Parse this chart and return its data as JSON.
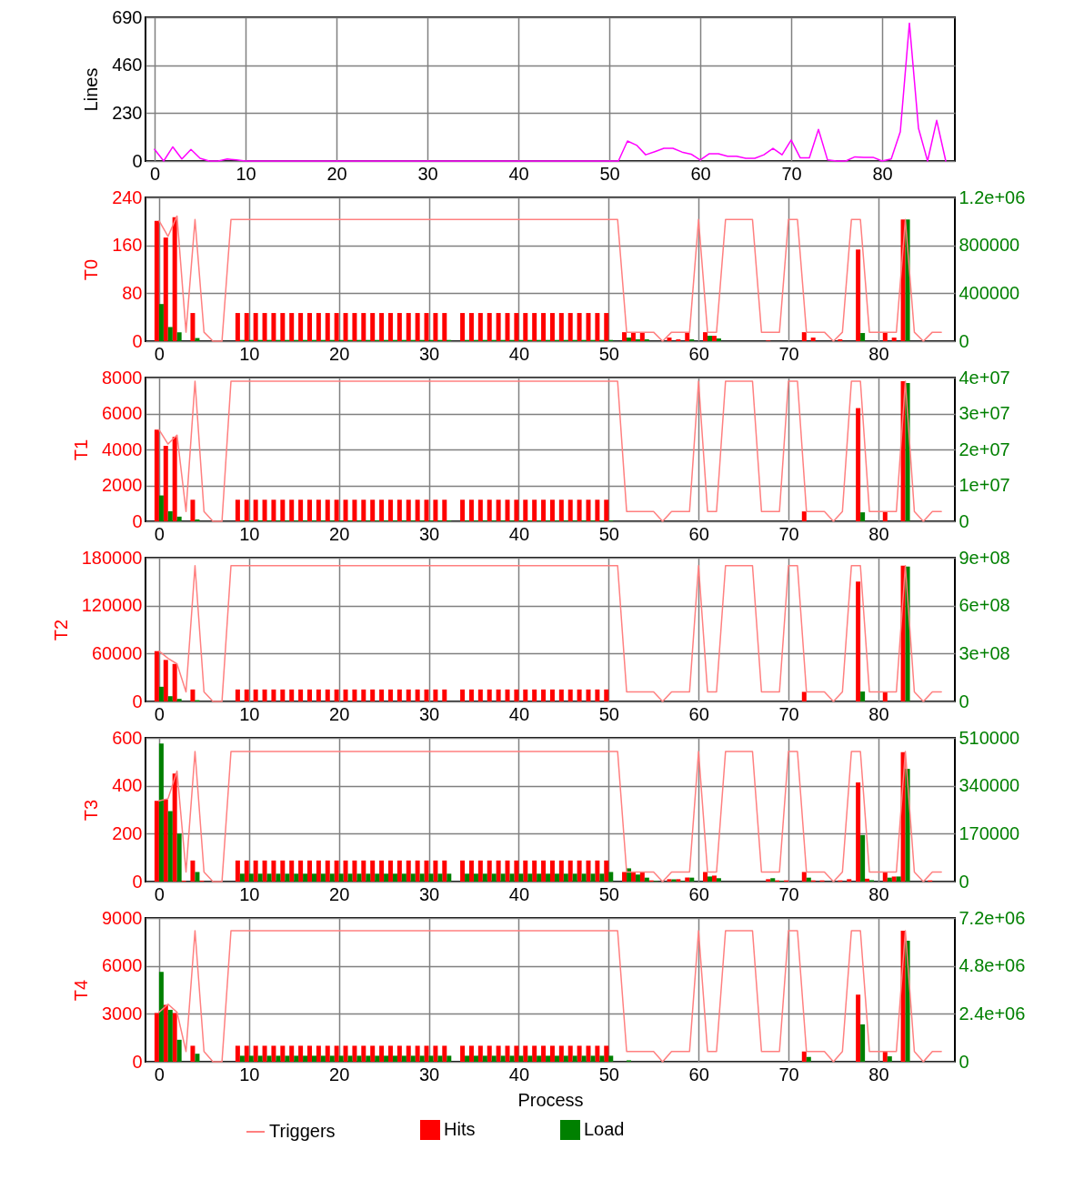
{
  "chart_data": [
    {
      "type": "line",
      "ylabel": "Lines",
      "x": [
        0,
        1,
        2,
        3,
        4,
        5,
        6,
        7,
        8,
        9,
        10,
        11,
        12,
        13,
        14,
        15,
        16,
        17,
        18,
        19,
        20,
        21,
        22,
        23,
        24,
        25,
        26,
        27,
        28,
        29,
        30,
        31,
        32,
        33,
        34,
        35,
        36,
        37,
        38,
        39,
        40,
        41,
        42,
        43,
        44,
        45,
        46,
        47,
        48,
        49,
        50,
        51,
        52,
        53,
        54,
        55,
        56,
        57,
        58,
        59,
        60,
        61,
        62,
        63,
        64,
        65,
        66,
        67,
        68,
        69,
        70,
        71,
        72,
        73,
        74,
        75,
        76,
        77,
        78,
        79,
        80,
        81,
        82,
        83,
        84,
        85,
        86,
        87
      ],
      "xlim": [
        -1,
        88
      ],
      "xticks": [
        0,
        10,
        20,
        30,
        40,
        50,
        60,
        70,
        80
      ],
      "ylim": [
        0,
        690
      ],
      "yticks": [
        0,
        230,
        460,
        690
      ],
      "grid": true,
      "series": [
        {
          "color": "#ff00ff",
          "values": [
            56,
            0,
            68,
            10,
            56,
            13,
            0,
            0,
            10,
            5,
            0,
            0,
            0,
            0,
            0,
            0,
            0,
            0,
            0,
            0,
            0,
            0,
            0,
            0,
            0,
            0,
            0,
            0,
            0,
            0,
            0,
            0,
            0,
            0,
            0,
            0,
            0,
            0,
            0,
            0,
            0,
            0,
            0,
            0,
            0,
            0,
            0,
            0,
            0,
            0,
            0,
            0,
            96,
            76,
            30,
            45,
            61,
            61,
            43,
            33,
            5,
            35,
            35,
            23,
            23,
            13,
            13,
            30,
            61,
            30,
            101,
            15,
            15,
            152,
            5,
            0,
            0,
            20,
            18,
            18,
            0,
            10,
            141,
            662,
            157,
            0,
            195,
            0
          ]
        }
      ]
    },
    {
      "type": "bar",
      "ylabel": "T0",
      "x": [
        0,
        1,
        2,
        3,
        4,
        5,
        6,
        7,
        8,
        9,
        10,
        11,
        12,
        13,
        14,
        15,
        16,
        17,
        18,
        19,
        20,
        21,
        22,
        23,
        24,
        25,
        26,
        27,
        28,
        29,
        30,
        31,
        32,
        33,
        34,
        35,
        36,
        37,
        38,
        39,
        40,
        41,
        42,
        43,
        44,
        45,
        46,
        47,
        48,
        49,
        50,
        51,
        52,
        53,
        54,
        55,
        56,
        57,
        58,
        59,
        60,
        61,
        62,
        63,
        64,
        65,
        66,
        67,
        68,
        69,
        70,
        71,
        72,
        73,
        74,
        75,
        76,
        77,
        78,
        79,
        80,
        81,
        82,
        83,
        84,
        85,
        86,
        87
      ],
      "xlim": [
        -1,
        88
      ],
      "xticks": [
        0,
        10,
        20,
        30,
        40,
        50,
        60,
        70,
        80
      ],
      "ylim": [
        0,
        240
      ],
      "yticks": [
        0,
        80,
        160,
        240
      ],
      "y2lim": [
        0,
        1200000
      ],
      "y2ticks": [
        0,
        400000,
        800000,
        {
          "value": 1200000,
          "label": "1.2e+06"
        }
      ],
      "grid": true,
      "series": [
        {
          "type": "line",
          "color": "#ff8080",
          "values": [
            201,
            175,
            209,
            15,
            203,
            15,
            0,
            0,
            203,
            203,
            203,
            203,
            203,
            203,
            203,
            203,
            203,
            203,
            203,
            203,
            203,
            203,
            203,
            203,
            203,
            203,
            203,
            203,
            203,
            203,
            203,
            203,
            203,
            203,
            203,
            203,
            203,
            203,
            203,
            203,
            203,
            203,
            203,
            203,
            203,
            203,
            203,
            203,
            203,
            203,
            203,
            203,
            15,
            15,
            15,
            15,
            0,
            15,
            15,
            15,
            203,
            15,
            15,
            203,
            203,
            203,
            203,
            15,
            15,
            15,
            203,
            203,
            15,
            15,
            15,
            0,
            15,
            203,
            203,
            15,
            15,
            15,
            15,
            203,
            15,
            0,
            15,
            15
          ]
        },
        {
          "color": "#ff0000",
          "values": [
            201,
            173,
            207,
            0,
            47,
            0,
            0,
            0,
            0,
            47,
            47,
            47,
            47,
            47,
            47,
            47,
            47,
            47,
            47,
            47,
            47,
            47,
            47,
            47,
            47,
            47,
            47,
            47,
            47,
            47,
            47,
            47,
            47,
            0,
            47,
            47,
            47,
            47,
            47,
            47,
            47,
            47,
            47,
            47,
            47,
            47,
            47,
            47,
            47,
            47,
            47,
            0,
            15,
            15,
            15,
            0,
            0,
            6,
            3,
            15,
            0,
            15,
            9,
            0,
            0,
            0,
            0,
            0,
            1,
            0,
            0,
            0,
            15,
            6,
            0,
            0,
            3,
            0,
            153,
            0,
            0,
            15,
            6,
            203,
            0,
            0,
            0,
            0
          ]
        },
        {
          "color": "#008000",
          "axis": "y2",
          "values": [
            310000,
            118000,
            74000,
            0,
            26000,
            0,
            0,
            0,
            0,
            10000,
            10000,
            10000,
            10000,
            10000,
            10000,
            10000,
            10000,
            10000,
            10000,
            10000,
            10000,
            10000,
            10000,
            10000,
            10000,
            10000,
            10000,
            10000,
            10000,
            10000,
            10000,
            10000,
            10000,
            0,
            10000,
            10000,
            10000,
            10000,
            10000,
            10000,
            10000,
            10000,
            10000,
            10000,
            10000,
            10000,
            10000,
            10000,
            10000,
            10000,
            10000,
            0,
            30000,
            15000,
            15000,
            0,
            0,
            0,
            0,
            15000,
            0,
            45000,
            23000,
            0,
            0,
            0,
            0,
            0,
            0,
            0,
            0,
            0,
            0,
            0,
            0,
            0,
            0,
            0,
            68000,
            0,
            0,
            0,
            0,
            1015000,
            0,
            0,
            0,
            0
          ]
        }
      ]
    },
    {
      "type": "bar",
      "ylabel": "T1",
      "x": [
        0,
        1,
        2,
        3,
        4,
        5,
        6,
        7,
        8,
        9,
        10,
        11,
        12,
        13,
        14,
        15,
        16,
        17,
        18,
        19,
        20,
        21,
        22,
        23,
        24,
        25,
        26,
        27,
        28,
        29,
        30,
        31,
        32,
        33,
        34,
        35,
        36,
        37,
        38,
        39,
        40,
        41,
        42,
        43,
        44,
        45,
        46,
        47,
        48,
        49,
        50,
        51,
        52,
        53,
        54,
        55,
        56,
        57,
        58,
        59,
        60,
        61,
        62,
        63,
        64,
        65,
        66,
        67,
        68,
        69,
        70,
        71,
        72,
        73,
        74,
        75,
        76,
        77,
        78,
        79,
        80,
        81,
        82,
        83,
        84,
        85,
        86,
        87
      ],
      "xlim": [
        -1,
        88
      ],
      "xticks": [
        0,
        10,
        20,
        30,
        40,
        50,
        60,
        70,
        80
      ],
      "ylim": [
        0,
        8000
      ],
      "yticks": [
        0,
        2000,
        4000,
        6000,
        8000
      ],
      "y2lim": [
        0,
        40000000
      ],
      "y2ticks": [
        0,
        {
          "value": 10000000,
          "label": "1e+07"
        },
        {
          "value": 20000000,
          "label": "2e+07"
        },
        {
          "value": 30000000,
          "label": "3e+07"
        },
        {
          "value": 40000000,
          "label": "4e+07"
        }
      ],
      "grid": true,
      "series": [
        {
          "type": "line",
          "color": "#ff8080",
          "values": [
            5100,
            4300,
            4800,
            550,
            7800,
            550,
            0,
            0,
            7800,
            7800,
            7800,
            7800,
            7800,
            7800,
            7800,
            7800,
            7800,
            7800,
            7800,
            7800,
            7800,
            7800,
            7800,
            7800,
            7800,
            7800,
            7800,
            7800,
            7800,
            7800,
            7800,
            7800,
            7800,
            7800,
            7800,
            7800,
            7800,
            7800,
            7800,
            7800,
            7800,
            7800,
            7800,
            7800,
            7800,
            7800,
            7800,
            7800,
            7800,
            7800,
            7800,
            7800,
            550,
            550,
            550,
            550,
            0,
            550,
            550,
            550,
            7800,
            550,
            550,
            7800,
            7800,
            7800,
            7800,
            550,
            550,
            550,
            7800,
            7800,
            550,
            550,
            550,
            0,
            550,
            7800,
            7800,
            550,
            550,
            550,
            550,
            7800,
            550,
            0,
            550,
            550
          ]
        },
        {
          "color": "#ff0000",
          "values": [
            5100,
            4200,
            4700,
            0,
            1200,
            0,
            0,
            0,
            0,
            1200,
            1200,
            1200,
            1200,
            1200,
            1200,
            1200,
            1200,
            1200,
            1200,
            1200,
            1200,
            1200,
            1200,
            1200,
            1200,
            1200,
            1200,
            1200,
            1200,
            1200,
            1200,
            1200,
            1200,
            0,
            1200,
            1200,
            1200,
            1200,
            1200,
            1200,
            1200,
            1200,
            1200,
            1200,
            1200,
            1200,
            1200,
            1200,
            1200,
            1200,
            1200,
            0,
            0,
            0,
            0,
            0,
            0,
            0,
            0,
            0,
            0,
            0,
            0,
            0,
            0,
            0,
            0,
            0,
            0,
            0,
            0,
            0,
            550,
            0,
            0,
            0,
            0,
            0,
            6300,
            0,
            0,
            550,
            0,
            7800,
            0,
            0,
            0,
            0
          ]
        },
        {
          "color": "#008000",
          "axis": "y2",
          "values": [
            7200000,
            2800000,
            1300000,
            0,
            500000,
            0,
            0,
            0,
            0,
            200000,
            200000,
            200000,
            200000,
            200000,
            200000,
            200000,
            200000,
            200000,
            200000,
            200000,
            200000,
            200000,
            200000,
            200000,
            200000,
            200000,
            200000,
            200000,
            200000,
            200000,
            200000,
            200000,
            200000,
            0,
            200000,
            200000,
            200000,
            200000,
            200000,
            200000,
            200000,
            200000,
            200000,
            200000,
            200000,
            200000,
            200000,
            200000,
            200000,
            200000,
            200000,
            0,
            0,
            0,
            0,
            0,
            0,
            0,
            0,
            0,
            0,
            0,
            0,
            0,
            0,
            0,
            0,
            0,
            0,
            0,
            0,
            0,
            0,
            0,
            0,
            0,
            0,
            0,
            2500000,
            0,
            0,
            0,
            0,
            38500000,
            0,
            0,
            0,
            0
          ]
        }
      ]
    },
    {
      "type": "bar",
      "ylabel": "T2",
      "x": [
        0,
        1,
        2,
        3,
        4,
        5,
        6,
        7,
        8,
        9,
        10,
        11,
        12,
        13,
        14,
        15,
        16,
        17,
        18,
        19,
        20,
        21,
        22,
        23,
        24,
        25,
        26,
        27,
        28,
        29,
        30,
        31,
        32,
        33,
        34,
        35,
        36,
        37,
        38,
        39,
        40,
        41,
        42,
        43,
        44,
        45,
        46,
        47,
        48,
        49,
        50,
        51,
        52,
        53,
        54,
        55,
        56,
        57,
        58,
        59,
        60,
        61,
        62,
        63,
        64,
        65,
        66,
        67,
        68,
        69,
        70,
        71,
        72,
        73,
        74,
        75,
        76,
        77,
        78,
        79,
        80,
        81,
        82,
        83,
        84,
        85,
        86,
        87
      ],
      "xlim": [
        -1,
        88
      ],
      "xticks": [
        0,
        10,
        20,
        30,
        40,
        50,
        60,
        70,
        80
      ],
      "ylim": [
        0,
        180000
      ],
      "yticks": [
        0,
        60000,
        120000,
        180000
      ],
      "y2lim": [
        0,
        900000000
      ],
      "y2ticks": [
        0,
        {
          "value": 300000000,
          "label": "3e+08"
        },
        {
          "value": 600000000,
          "label": "6e+08"
        },
        {
          "value": 900000000,
          "label": "9e+08"
        }
      ],
      "grid": true,
      "series": [
        {
          "type": "line",
          "color": "#ff8080",
          "values": [
            63000,
            54000,
            47000,
            12000,
            170000,
            12000,
            0,
            0,
            170000,
            170000,
            170000,
            170000,
            170000,
            170000,
            170000,
            170000,
            170000,
            170000,
            170000,
            170000,
            170000,
            170000,
            170000,
            170000,
            170000,
            170000,
            170000,
            170000,
            170000,
            170000,
            170000,
            170000,
            170000,
            170000,
            170000,
            170000,
            170000,
            170000,
            170000,
            170000,
            170000,
            170000,
            170000,
            170000,
            170000,
            170000,
            170000,
            170000,
            170000,
            170000,
            170000,
            170000,
            12000,
            12000,
            12000,
            12000,
            0,
            12000,
            12000,
            12000,
            170000,
            12000,
            12000,
            170000,
            170000,
            170000,
            170000,
            12000,
            12000,
            12000,
            170000,
            170000,
            12000,
            12000,
            12000,
            0,
            12000,
            170000,
            170000,
            12000,
            12000,
            12000,
            12000,
            170000,
            12000,
            0,
            12000,
            12000
          ]
        },
        {
          "color": "#ff0000",
          "values": [
            63000,
            52000,
            47000,
            0,
            15000,
            0,
            0,
            0,
            0,
            15000,
            15000,
            15000,
            15000,
            15000,
            15000,
            15000,
            15000,
            15000,
            15000,
            15000,
            15000,
            15000,
            15000,
            15000,
            15000,
            15000,
            15000,
            15000,
            15000,
            15000,
            15000,
            15000,
            15000,
            0,
            15000,
            15000,
            15000,
            15000,
            15000,
            15000,
            15000,
            15000,
            15000,
            15000,
            15000,
            15000,
            15000,
            15000,
            15000,
            15000,
            15000,
            0,
            0,
            0,
            0,
            0,
            0,
            0,
            0,
            0,
            0,
            0,
            0,
            0,
            0,
            0,
            0,
            0,
            0,
            0,
            0,
            0,
            12000,
            0,
            0,
            0,
            0,
            0,
            150000,
            0,
            0,
            12000,
            0,
            170000,
            0,
            0,
            0,
            0
          ]
        },
        {
          "color": "#008000",
          "axis": "y2",
          "values": [
            92000000,
            33000000,
            16000000,
            0,
            8000000,
            0,
            0,
            0,
            0,
            0,
            0,
            0,
            0,
            0,
            0,
            0,
            0,
            0,
            0,
            0,
            0,
            0,
            0,
            0,
            0,
            0,
            0,
            0,
            0,
            0,
            0,
            0,
            0,
            0,
            0,
            0,
            0,
            0,
            0,
            0,
            0,
            0,
            0,
            0,
            0,
            0,
            0,
            0,
            0,
            0,
            0,
            0,
            0,
            0,
            0,
            0,
            0,
            0,
            0,
            0,
            0,
            0,
            0,
            0,
            0,
            0,
            0,
            0,
            0,
            0,
            0,
            0,
            0,
            0,
            0,
            0,
            0,
            0,
            62000000,
            0,
            0,
            0,
            0,
            844000000,
            0,
            0,
            0,
            0
          ]
        }
      ]
    },
    {
      "type": "bar",
      "ylabel": "T3",
      "x": [
        0,
        1,
        2,
        3,
        4,
        5,
        6,
        7,
        8,
        9,
        10,
        11,
        12,
        13,
        14,
        15,
        16,
        17,
        18,
        19,
        20,
        21,
        22,
        23,
        24,
        25,
        26,
        27,
        28,
        29,
        30,
        31,
        32,
        33,
        34,
        35,
        36,
        37,
        38,
        39,
        40,
        41,
        42,
        43,
        44,
        45,
        46,
        47,
        48,
        49,
        50,
        51,
        52,
        53,
        54,
        55,
        56,
        57,
        58,
        59,
        60,
        61,
        62,
        63,
        64,
        65,
        66,
        67,
        68,
        69,
        70,
        71,
        72,
        73,
        74,
        75,
        76,
        77,
        78,
        79,
        80,
        81,
        82,
        83,
        84,
        85,
        86,
        87
      ],
      "xlim": [
        -1,
        88
      ],
      "xticks": [
        0,
        10,
        20,
        30,
        40,
        50,
        60,
        70,
        80
      ],
      "ylim": [
        0,
        600
      ],
      "yticks": [
        0,
        200,
        400,
        600
      ],
      "y2lim": [
        0,
        510000
      ],
      "y2ticks": [
        0,
        170000,
        340000,
        510000
      ],
      "grid": true,
      "series": [
        {
          "type": "line",
          "color": "#ff8080",
          "values": [
            337,
            346,
            461,
            40,
            543,
            40,
            0,
            0,
            543,
            543,
            543,
            543,
            543,
            543,
            543,
            543,
            543,
            543,
            543,
            543,
            543,
            543,
            543,
            543,
            543,
            543,
            543,
            543,
            543,
            543,
            543,
            543,
            543,
            543,
            543,
            543,
            543,
            543,
            543,
            543,
            543,
            543,
            543,
            543,
            543,
            543,
            543,
            543,
            543,
            543,
            543,
            543,
            40,
            40,
            40,
            40,
            0,
            40,
            40,
            40,
            543,
            40,
            40,
            543,
            543,
            543,
            543,
            40,
            40,
            40,
            543,
            543,
            40,
            40,
            40,
            0,
            40,
            543,
            543,
            40,
            40,
            40,
            40,
            543,
            40,
            0,
            40,
            40
          ]
        },
        {
          "color": "#ff0000",
          "values": [
            337,
            343,
            451,
            4,
            88,
            4,
            0,
            0,
            0,
            88,
            88,
            88,
            88,
            88,
            88,
            88,
            88,
            88,
            88,
            88,
            88,
            88,
            88,
            88,
            88,
            88,
            88,
            88,
            88,
            88,
            88,
            88,
            88,
            0,
            88,
            88,
            88,
            88,
            88,
            88,
            88,
            88,
            88,
            88,
            88,
            88,
            88,
            88,
            88,
            88,
            88,
            0,
            40,
            40,
            40,
            5,
            0,
            10,
            10,
            17,
            0,
            40,
            25,
            0,
            0,
            0,
            0,
            0,
            10,
            5,
            5,
            0,
            40,
            5,
            5,
            0,
            5,
            10,
            414,
            12,
            0,
            40,
            21,
            540,
            0,
            0,
            5,
            0
          ]
        },
        {
          "color": "#008000",
          "axis": "y2",
          "values": [
            490000,
            250000,
            170000,
            0,
            34000,
            0,
            0,
            0,
            0,
            28000,
            28000,
            28000,
            28000,
            28000,
            28000,
            28000,
            28000,
            28000,
            28000,
            28000,
            28000,
            28000,
            28000,
            28000,
            28000,
            28000,
            28000,
            28000,
            28000,
            28000,
            28000,
            28000,
            28000,
            0,
            28000,
            28000,
            28000,
            28000,
            28000,
            28000,
            28000,
            28000,
            28000,
            28000,
            28000,
            28000,
            28000,
            28000,
            28000,
            28000,
            34000,
            0,
            47000,
            25000,
            14000,
            2000,
            0,
            8000,
            2000,
            14000,
            0,
            18000,
            12000,
            0,
            0,
            0,
            0,
            0,
            12000,
            2000,
            0,
            0,
            14000,
            0,
            0,
            0,
            0,
            0,
            165000,
            5000,
            0,
            14000,
            18000,
            400000,
            0,
            0,
            0,
            0
          ]
        }
      ]
    },
    {
      "type": "bar",
      "ylabel": "T4",
      "xlabel": "Process",
      "legend": "bottom",
      "x": [
        0,
        1,
        2,
        3,
        4,
        5,
        6,
        7,
        8,
        9,
        10,
        11,
        12,
        13,
        14,
        15,
        16,
        17,
        18,
        19,
        20,
        21,
        22,
        23,
        24,
        25,
        26,
        27,
        28,
        29,
        30,
        31,
        32,
        33,
        34,
        35,
        36,
        37,
        38,
        39,
        40,
        41,
        42,
        43,
        44,
        45,
        46,
        47,
        48,
        49,
        50,
        51,
        52,
        53,
        54,
        55,
        56,
        57,
        58,
        59,
        60,
        61,
        62,
        63,
        64,
        65,
        66,
        67,
        68,
        69,
        70,
        71,
        72,
        73,
        74,
        75,
        76,
        77,
        78,
        79,
        80,
        81,
        82,
        83,
        84,
        85,
        86,
        87
      ],
      "xlim": [
        -1,
        88
      ],
      "xticks": [
        0,
        10,
        20,
        30,
        40,
        50,
        60,
        70,
        80
      ],
      "ylim": [
        0,
        9000
      ],
      "yticks": [
        0,
        3000,
        6000,
        9000
      ],
      "y2lim": [
        0,
        7200000
      ],
      "y2ticks": [
        0,
        {
          "value": 2400000,
          "label": "2.4e+06"
        },
        {
          "value": 4800000,
          "label": "4.8e+06"
        },
        {
          "value": 7200000,
          "label": "7.2e+06"
        }
      ],
      "grid": true,
      "series": [
        {
          "name": "Triggers",
          "type": "line",
          "color": "#ff8080",
          "values": [
            3100,
            3600,
            3100,
            640,
            8200,
            640,
            0,
            0,
            8200,
            8200,
            8200,
            8200,
            8200,
            8200,
            8200,
            8200,
            8200,
            8200,
            8200,
            8200,
            8200,
            8200,
            8200,
            8200,
            8200,
            8200,
            8200,
            8200,
            8200,
            8200,
            8200,
            8200,
            8200,
            8200,
            8200,
            8200,
            8200,
            8200,
            8200,
            8200,
            8200,
            8200,
            8200,
            8200,
            8200,
            8200,
            8200,
            8200,
            8200,
            8200,
            8200,
            8200,
            640,
            640,
            640,
            640,
            0,
            640,
            640,
            640,
            8200,
            640,
            640,
            8200,
            8200,
            8200,
            8200,
            640,
            640,
            640,
            8200,
            8200,
            640,
            640,
            640,
            0,
            640,
            8200,
            8200,
            640,
            640,
            640,
            640,
            8200,
            640,
            0,
            640,
            640
          ]
        },
        {
          "name": "Hits",
          "color": "#ff0000",
          "values": [
            3050,
            3560,
            3050,
            0,
            1000,
            0,
            0,
            0,
            0,
            1000,
            1000,
            1000,
            1000,
            1000,
            1000,
            1000,
            1000,
            1000,
            1000,
            1000,
            1000,
            1000,
            1000,
            1000,
            1000,
            1000,
            1000,
            1000,
            1000,
            1000,
            1000,
            1000,
            1000,
            0,
            1000,
            1000,
            1000,
            1000,
            1000,
            1000,
            1000,
            1000,
            1000,
            1000,
            1000,
            1000,
            1000,
            1000,
            1000,
            1000,
            1000,
            0,
            0,
            0,
            0,
            0,
            0,
            0,
            0,
            0,
            0,
            0,
            0,
            0,
            0,
            0,
            0,
            0,
            0,
            0,
            0,
            0,
            640,
            0,
            0,
            0,
            0,
            0,
            4200,
            0,
            0,
            640,
            0,
            8200,
            0,
            0,
            0,
            0
          ]
        },
        {
          "name": "Load",
          "color": "#008000",
          "axis": "y2",
          "values": [
            4500000,
            2600000,
            1100000,
            0,
            400000,
            0,
            0,
            0,
            0,
            300000,
            300000,
            300000,
            300000,
            300000,
            300000,
            300000,
            300000,
            300000,
            300000,
            300000,
            300000,
            300000,
            300000,
            300000,
            300000,
            300000,
            300000,
            300000,
            300000,
            300000,
            300000,
            300000,
            300000,
            0,
            300000,
            300000,
            300000,
            300000,
            300000,
            300000,
            300000,
            300000,
            300000,
            300000,
            300000,
            300000,
            300000,
            300000,
            300000,
            300000,
            300000,
            0,
            70000,
            0,
            0,
            0,
            0,
            0,
            0,
            0,
            0,
            0,
            0,
            0,
            0,
            0,
            0,
            0,
            0,
            0,
            0,
            0,
            240000,
            0,
            0,
            0,
            0,
            0,
            1870000,
            0,
            0,
            270000,
            0,
            6060000,
            0,
            0,
            0,
            0
          ]
        }
      ]
    }
  ]
}
